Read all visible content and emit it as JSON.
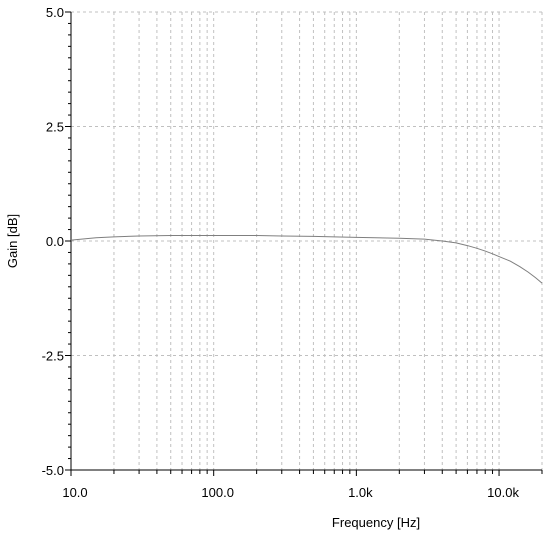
{
  "chart_data": {
    "type": "line",
    "xlabel": "Frequency [Hz]",
    "ylabel": "Gain [dB]",
    "x_scale": "log",
    "xlim": [
      10,
      20000
    ],
    "ylim": [
      -5.0,
      5.0
    ],
    "grid": true,
    "x_ticks": [
      {
        "value": 10,
        "label": "10.0"
      },
      {
        "value": 100,
        "label": "100.0"
      },
      {
        "value": 1000,
        "label": "1.0k"
      },
      {
        "value": 10000,
        "label": "10.0k"
      }
    ],
    "y_ticks": [
      {
        "value": 5.0,
        "label": "5.0"
      },
      {
        "value": 2.5,
        "label": "2.5"
      },
      {
        "value": 0.0,
        "label": "0.0"
      },
      {
        "value": -2.5,
        "label": "-2.5"
      },
      {
        "value": -5.0,
        "label": "-5.0"
      }
    ],
    "series": [
      {
        "color": "#7f7f7f",
        "x": [
          10,
          15,
          20,
          30,
          50,
          70,
          100,
          200,
          300,
          500,
          700,
          1000,
          2000,
          3000,
          4000,
          5000,
          6000,
          7000,
          8000,
          9000,
          10000,
          12000,
          14000,
          16000,
          18000,
          20000
        ],
        "y": [
          0.02,
          0.07,
          0.09,
          0.11,
          0.12,
          0.12,
          0.12,
          0.12,
          0.11,
          0.1,
          0.09,
          0.08,
          0.06,
          0.04,
          0.0,
          -0.04,
          -0.1,
          -0.16,
          -0.22,
          -0.28,
          -0.34,
          -0.44,
          -0.56,
          -0.68,
          -0.8,
          -0.92
        ]
      }
    ]
  }
}
